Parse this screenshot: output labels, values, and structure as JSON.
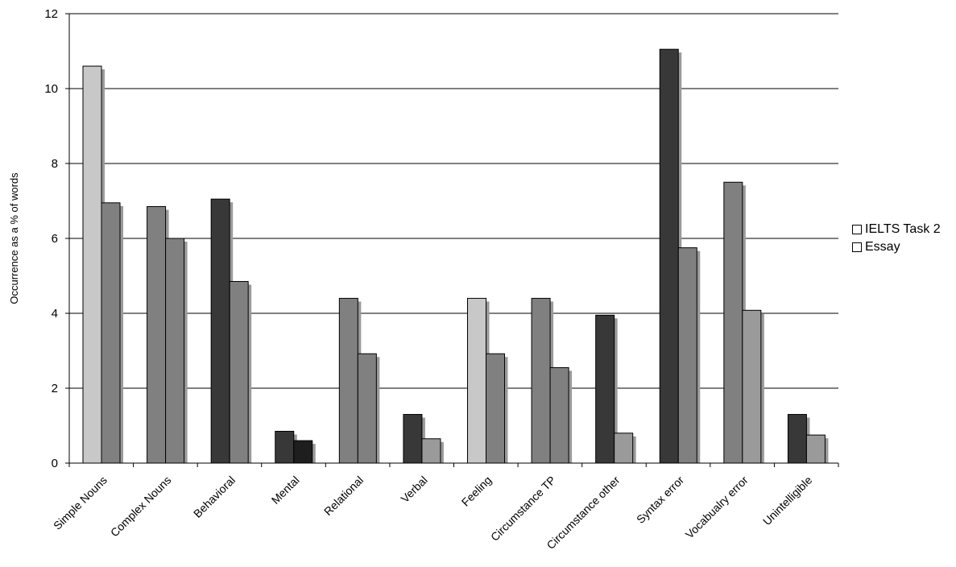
{
  "chart_data": {
    "type": "bar",
    "ylabel": "Occurrence as a % of words",
    "ylim": [
      0,
      12
    ],
    "yticks": [
      0,
      2,
      4,
      6,
      8,
      10,
      12
    ],
    "grid": true,
    "legend_position": "right",
    "categories": [
      "Simple Nouns",
      "Complex Nouns",
      "Behavioral",
      "Mental",
      "Relational",
      "Verbal",
      "Feeling",
      "Circumstance TP",
      "Circumstance other",
      "Syntax error",
      "Vocabualry error",
      "Unintelligible"
    ],
    "series": [
      {
        "name": "IELTS Task 2",
        "values": [
          10.6,
          6.85,
          7.05,
          0.85,
          4.4,
          1.3,
          4.4,
          4.4,
          3.95,
          11.05,
          7.5,
          1.3
        ]
      },
      {
        "name": "Essay",
        "values": [
          6.95,
          6.0,
          4.85,
          0.6,
          2.92,
          0.65,
          2.92,
          2.55,
          0.8,
          5.75,
          4.08,
          0.75
        ]
      }
    ],
    "bar_colors": [
      [
        "#c8c8c8",
        "#808080"
      ],
      [
        "#808080",
        "#808080"
      ],
      [
        "#383838",
        "#808080"
      ],
      [
        "#383838",
        "#1e1e1e"
      ],
      [
        "#808080",
        "#808080"
      ],
      [
        "#383838",
        "#9a9a9a"
      ],
      [
        "#c8c8c8",
        "#808080"
      ],
      [
        "#808080",
        "#808080"
      ],
      [
        "#383838",
        "#9a9a9a"
      ],
      [
        "#383838",
        "#808080"
      ],
      [
        "#808080",
        "#9a9a9a"
      ],
      [
        "#383838",
        "#9a9a9a"
      ]
    ],
    "shadow_color": "#9a9a9a",
    "grid_color": "#000000"
  },
  "legend": {
    "items": [
      "IELTS Task 2",
      "Essay"
    ]
  }
}
